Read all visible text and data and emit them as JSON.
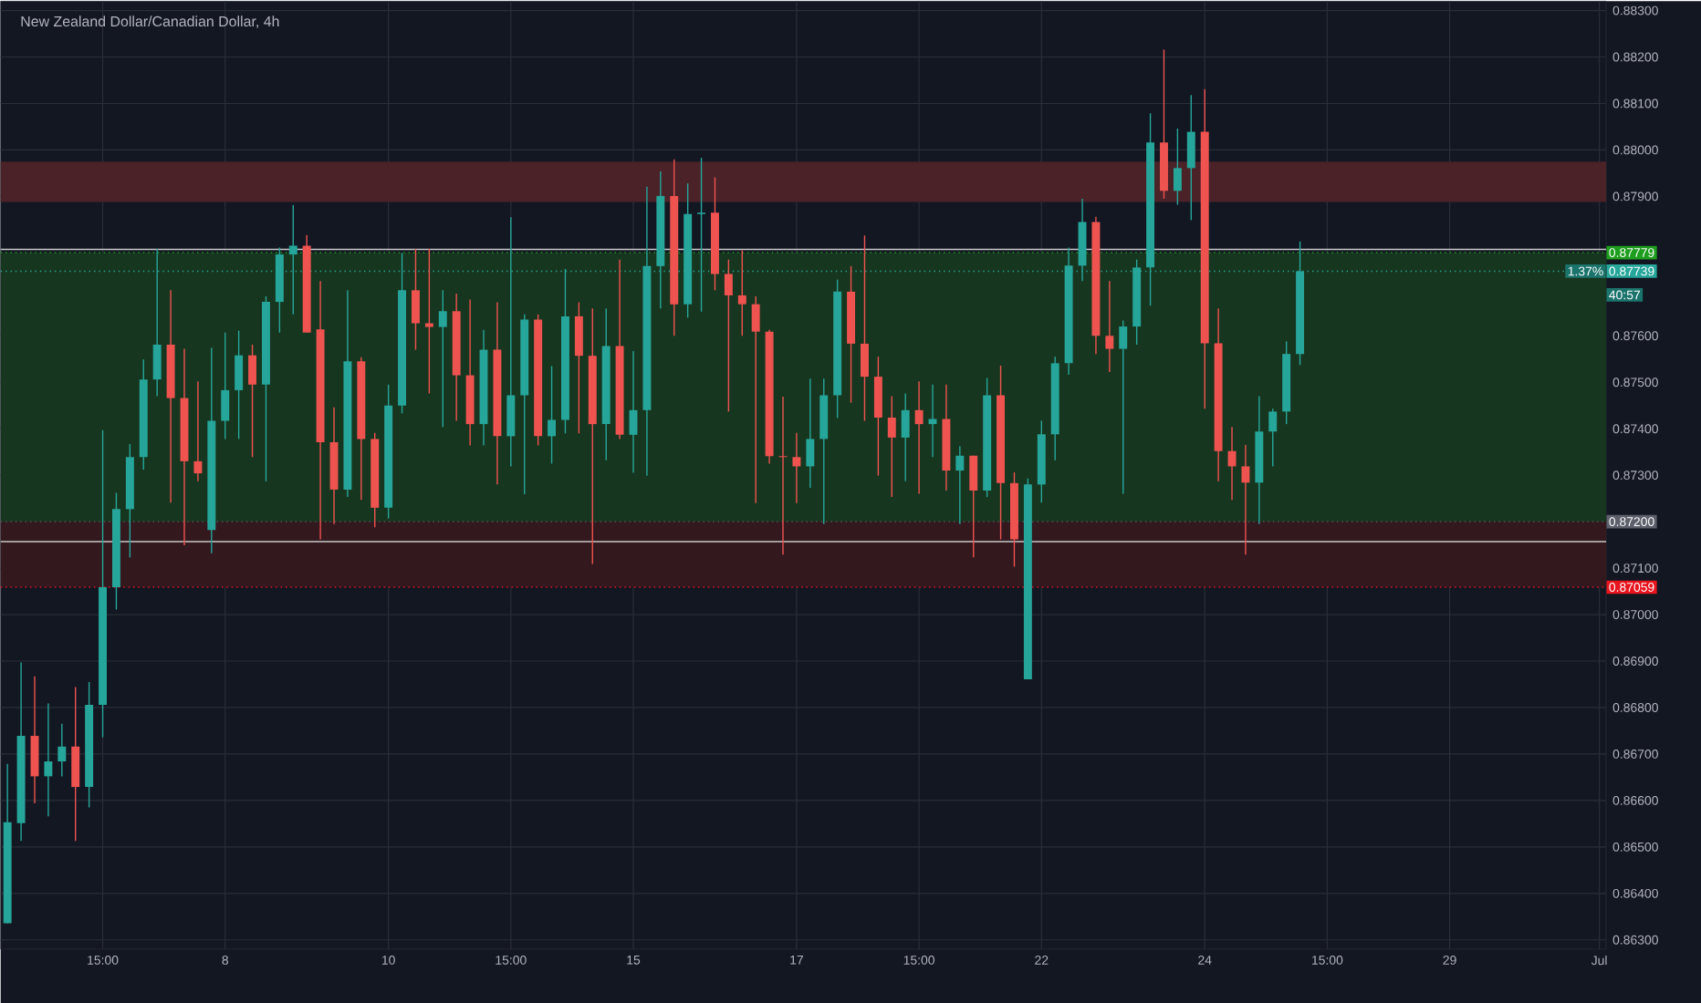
{
  "chart_data": {
    "type": "candlestick",
    "title": "New Zealand Dollar/Canadian Dollar, 4h",
    "categories": [
      null,
      null,
      null,
      null,
      null,
      null,
      null,
      "15:00",
      null,
      null,
      null,
      null,
      null,
      null,
      null,
      null,
      "8",
      null,
      null,
      null,
      null,
      null,
      null,
      null,
      null,
      null,
      null,
      null,
      "10",
      null,
      null,
      null,
      null,
      null,
      null,
      null,
      null,
      "15:00",
      null,
      null,
      null,
      null,
      null,
      null,
      null,
      null,
      "15",
      null,
      null,
      null,
      null,
      null,
      null,
      null,
      null,
      null,
      null,
      null,
      "17",
      null,
      null,
      null,
      null,
      null,
      null,
      null,
      null,
      "15:00",
      null,
      null,
      null,
      null,
      null,
      null,
      null,
      null,
      "22",
      null,
      null,
      null,
      null,
      null,
      null,
      null,
      null,
      null,
      null,
      null,
      "24",
      null,
      null,
      null,
      null,
      null,
      null,
      null,
      null,
      "15:00",
      null,
      null,
      null,
      null,
      null,
      null,
      null,
      null,
      "29",
      null,
      null,
      null,
      null,
      null,
      null,
      null,
      null,
      null,
      null,
      "Jul"
    ],
    "ohlc": [
      [
        0.86336,
        0.86679,
        0.86336,
        0.86553
      ],
      [
        0.86551,
        0.86897,
        0.86513,
        0.86739
      ],
      [
        0.86739,
        0.86867,
        0.86594,
        0.86652
      ],
      [
        0.86652,
        0.86809,
        0.86566,
        0.86684
      ],
      [
        0.86684,
        0.86765,
        0.86652,
        0.86716
      ],
      [
        0.86716,
        0.86844,
        0.86513,
        0.86629
      ],
      [
        0.86629,
        0.86855,
        0.86585,
        0.86806
      ],
      [
        0.86806,
        0.87397,
        0.86736,
        0.87059
      ],
      [
        0.87059,
        0.87262,
        0.87011,
        0.87227
      ],
      [
        0.87227,
        0.87367,
        0.87123,
        0.87339
      ],
      [
        0.87339,
        0.87549,
        0.87312,
        0.87506
      ],
      [
        0.87506,
        0.87787,
        0.8747,
        0.87581
      ],
      [
        0.87581,
        0.87698,
        0.87241,
        0.87466
      ],
      [
        0.87466,
        0.87572,
        0.87149,
        0.8733
      ],
      [
        0.8733,
        0.87502,
        0.87287,
        0.87304
      ],
      [
        0.87182,
        0.87574,
        0.87132,
        0.87417
      ],
      [
        0.87417,
        0.87607,
        0.87378,
        0.87483
      ],
      [
        0.87483,
        0.87611,
        0.87378,
        0.87558
      ],
      [
        0.87558,
        0.87581,
        0.87339,
        0.87495
      ],
      [
        0.87495,
        0.87685,
        0.87287,
        0.87673
      ],
      [
        0.87673,
        0.8779,
        0.87607,
        0.87775
      ],
      [
        0.87775,
        0.87881,
        0.87646,
        0.87794
      ],
      [
        0.87794,
        0.87817,
        0.87607,
        0.87607
      ],
      [
        0.87614,
        0.87718,
        0.87162,
        0.87371
      ],
      [
        0.87371,
        0.87446,
        0.87195,
        0.87269
      ],
      [
        0.87269,
        0.87698,
        0.87253,
        0.87545
      ],
      [
        0.87545,
        0.87554,
        0.87247,
        0.87378
      ],
      [
        0.87378,
        0.87391,
        0.87188,
        0.8723
      ],
      [
        0.8723,
        0.87495,
        0.87207,
        0.8745
      ],
      [
        0.8745,
        0.87778,
        0.87433,
        0.87698
      ],
      [
        0.87698,
        0.87787,
        0.8757,
        0.87627
      ],
      [
        0.87627,
        0.87787,
        0.87476,
        0.87619
      ],
      [
        0.87619,
        0.87698,
        0.87404,
        0.87653
      ],
      [
        0.87653,
        0.87691,
        0.87417,
        0.87515
      ],
      [
        0.87515,
        0.87678,
        0.87364,
        0.8741
      ],
      [
        0.8741,
        0.87613,
        0.87364,
        0.8757
      ],
      [
        0.8757,
        0.87672,
        0.8728,
        0.87384
      ],
      [
        0.87384,
        0.87855,
        0.87319,
        0.87472
      ],
      [
        0.87472,
        0.87646,
        0.87259,
        0.87635
      ],
      [
        0.87635,
        0.87646,
        0.87364,
        0.87384
      ],
      [
        0.87384,
        0.87535,
        0.87325,
        0.87419
      ],
      [
        0.87419,
        0.87744,
        0.8739,
        0.87642
      ],
      [
        0.87642,
        0.87672,
        0.8739,
        0.87557
      ],
      [
        0.87557,
        0.87659,
        0.87109,
        0.8741
      ],
      [
        0.8741,
        0.87659,
        0.87332,
        0.87578
      ],
      [
        0.87578,
        0.87764,
        0.87378,
        0.87387
      ],
      [
        0.87387,
        0.87567,
        0.87305,
        0.8744
      ],
      [
        0.8744,
        0.87921,
        0.87299,
        0.8775
      ],
      [
        0.8775,
        0.87954,
        0.87659,
        0.87901
      ],
      [
        0.87901,
        0.8798,
        0.876,
        0.87668
      ],
      [
        0.87668,
        0.87928,
        0.87639,
        0.87862
      ],
      [
        0.87862,
        0.87983,
        0.87652,
        0.87865
      ],
      [
        0.87865,
        0.87941,
        0.87698,
        0.87733
      ],
      [
        0.87733,
        0.87764,
        0.87437,
        0.87687
      ],
      [
        0.87687,
        0.87784,
        0.876,
        0.87668
      ],
      [
        0.87668,
        0.87685,
        0.8724,
        0.87609
      ],
      [
        0.87609,
        0.87613,
        0.87325,
        0.87341
      ],
      [
        0.87341,
        0.87469,
        0.87129,
        0.87339
      ],
      [
        0.87339,
        0.87391,
        0.8724,
        0.87319
      ],
      [
        0.87319,
        0.87508,
        0.87273,
        0.87378
      ],
      [
        0.87378,
        0.87508,
        0.87195,
        0.87472
      ],
      [
        0.87472,
        0.87721,
        0.87423,
        0.87695
      ],
      [
        0.87695,
        0.8775,
        0.87456,
        0.87583
      ],
      [
        0.87583,
        0.87816,
        0.87417,
        0.87512
      ],
      [
        0.87512,
        0.87555,
        0.87299,
        0.87424
      ],
      [
        0.87424,
        0.8747,
        0.87253,
        0.87381
      ],
      [
        0.87381,
        0.87476,
        0.87287,
        0.8744
      ],
      [
        0.8744,
        0.87502,
        0.8726,
        0.8741
      ],
      [
        0.8741,
        0.87495,
        0.87339,
        0.87421
      ],
      [
        0.87421,
        0.87495,
        0.87267,
        0.8731
      ],
      [
        0.8731,
        0.87362,
        0.87195,
        0.87342
      ],
      [
        0.87342,
        0.87342,
        0.87123,
        0.87267
      ],
      [
        0.87267,
        0.87509,
        0.87253,
        0.87472
      ],
      [
        0.87472,
        0.87536,
        0.87162,
        0.87283
      ],
      [
        0.87283,
        0.87306,
        0.87103,
        0.87162
      ],
      [
        0.86861,
        0.87293,
        0.86861,
        0.8728
      ],
      [
        0.8728,
        0.87417,
        0.87241,
        0.87388
      ],
      [
        0.87388,
        0.87555,
        0.87332,
        0.87541
      ],
      [
        0.87541,
        0.8779,
        0.87516,
        0.87751
      ],
      [
        0.87751,
        0.87895,
        0.87718,
        0.87845
      ],
      [
        0.87845,
        0.87856,
        0.87561,
        0.876
      ],
      [
        0.876,
        0.87718,
        0.87522,
        0.87572
      ],
      [
        0.87572,
        0.87633,
        0.8726,
        0.8762
      ],
      [
        0.8762,
        0.87764,
        0.87581,
        0.87747
      ],
      [
        0.87747,
        0.88079,
        0.87665,
        0.88016
      ],
      [
        0.88016,
        0.88216,
        0.87895,
        0.87912
      ],
      [
        0.87912,
        0.88046,
        0.87882,
        0.87961
      ],
      [
        0.87961,
        0.88118,
        0.87849,
        0.88039
      ],
      [
        0.88039,
        0.88131,
        0.87443,
        0.87584
      ],
      [
        0.87584,
        0.87659,
        0.87287,
        0.87352
      ],
      [
        0.87352,
        0.87404,
        0.87247,
        0.87319
      ],
      [
        0.87319,
        0.87365,
        0.87129,
        0.87284
      ],
      [
        0.87284,
        0.8747,
        0.87195,
        0.87394
      ],
      [
        0.87394,
        0.87443,
        0.87319,
        0.87437
      ],
      [
        0.87437,
        0.87588,
        0.8741,
        0.87561
      ],
      [
        0.87561,
        0.87803,
        0.87537,
        0.87739
      ],
      null,
      null,
      null,
      null,
      null,
      null,
      null,
      null,
      null,
      null,
      null,
      null,
      null,
      null,
      null,
      null,
      null,
      null,
      null,
      null,
      null,
      null
    ],
    "ylim": [
      0.8628,
      0.8832
    ],
    "yticks": [
      {
        "value": 0.863,
        "label": "0.86300"
      },
      {
        "value": 0.864,
        "label": "0.86400"
      },
      {
        "value": 0.865,
        "label": "0.86500"
      },
      {
        "value": 0.866,
        "label": "0.86600"
      },
      {
        "value": 0.867,
        "label": "0.86700"
      },
      {
        "value": 0.868,
        "label": "0.86800"
      },
      {
        "value": 0.869,
        "label": "0.86900"
      },
      {
        "value": 0.87,
        "label": "0.87000"
      },
      {
        "value": 0.871,
        "label": "0.87100"
      },
      {
        "value": 0.873,
        "label": "0.87300"
      },
      {
        "value": 0.874,
        "label": "0.87400"
      },
      {
        "value": 0.875,
        "label": "0.87500"
      },
      {
        "value": 0.876,
        "label": "0.87600"
      },
      {
        "value": 0.879,
        "label": "0.87900"
      },
      {
        "value": 0.88,
        "label": "0.88000"
      },
      {
        "value": 0.881,
        "label": "0.88100"
      },
      {
        "value": 0.882,
        "label": "0.88200"
      },
      {
        "value": 0.883,
        "label": "0.88300"
      }
    ],
    "grid": true,
    "bands": [
      {
        "axis": "y",
        "from": 0.87888,
        "to": 0.87975,
        "color": "#4a2228"
      },
      {
        "axis": "y",
        "from": 0.872,
        "to": 0.87779,
        "color": "#17361f"
      },
      {
        "axis": "y",
        "from": 0.87059,
        "to": 0.872,
        "color": "#33181e"
      }
    ],
    "ref_lines": [
      {
        "axis": "y",
        "value": 0.87786,
        "color": "#c8c8c8",
        "line_style": "solid"
      },
      {
        "axis": "y",
        "value": 0.87157,
        "color": "#c8c8c8",
        "line_style": "solid"
      },
      {
        "axis": "y",
        "value": 0.87779,
        "label": "0.87779",
        "color": "#1e9e1e",
        "line_style": "dotted"
      },
      {
        "axis": "y",
        "value": 0.87739,
        "label": "0.87739",
        "color": "#26a69a",
        "line_style": "dotted"
      },
      {
        "axis": "y",
        "value": 0.872,
        "label": "0.87200",
        "color": "#5d606b",
        "line_style": "dotted"
      },
      {
        "axis": "y",
        "value": 0.87059,
        "label": "0.87059",
        "color": "#e8141e",
        "line_style": "dotted"
      }
    ],
    "annotations": [
      {
        "text": "1.37%",
        "y": 0.87739
      },
      {
        "text": "40:57",
        "y": 0.87688
      }
    ]
  }
}
